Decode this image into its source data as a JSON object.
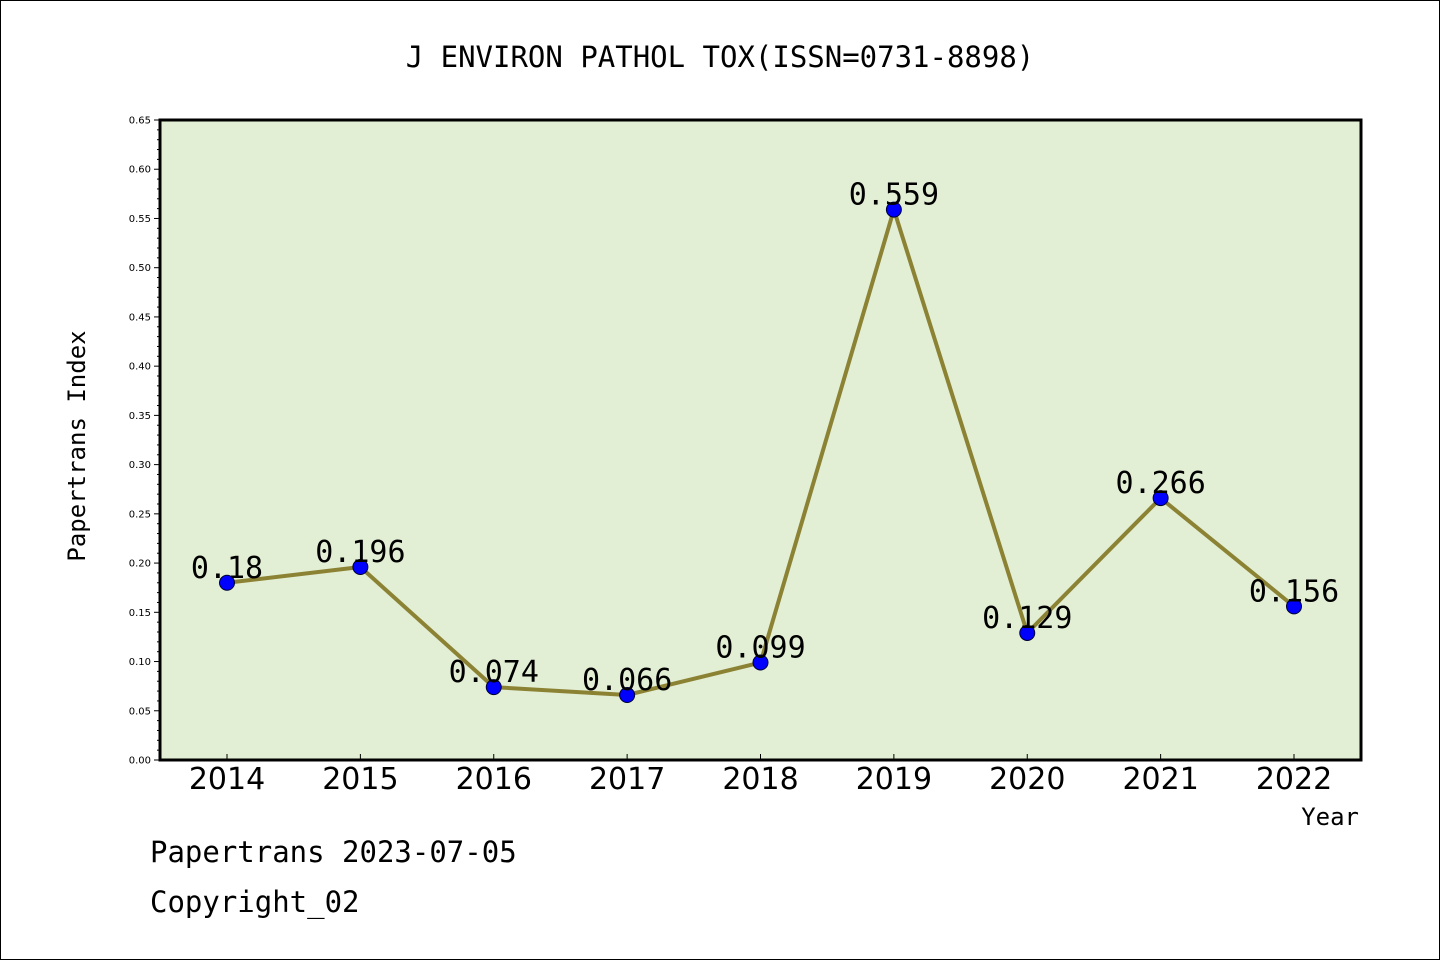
{
  "chart_data": {
    "type": "line",
    "title": "J ENVIRON PATHOL TOX(ISSN=0731-8898)",
    "xlabel": "Year",
    "ylabel": "Papertrans Index",
    "categories": [
      "2014",
      "2015",
      "2016",
      "2017",
      "2018",
      "2019",
      "2020",
      "2021",
      "2022"
    ],
    "values": [
      0.18,
      0.196,
      0.074,
      0.066,
      0.099,
      0.559,
      0.129,
      0.266,
      0.156
    ],
    "data_labels": [
      "0.18",
      "0.196",
      "0.074",
      "0.066",
      "0.099",
      "0.559",
      "0.129",
      "0.266",
      "0.156"
    ],
    "ylim": [
      0,
      0.65
    ],
    "yticks": [
      "0.00",
      "0.05",
      "0.10",
      "0.15",
      "0.20",
      "0.25",
      "0.30",
      "0.35",
      "0.40",
      "0.45",
      "0.50",
      "0.55",
      "0.60",
      "0.65"
    ],
    "grid": false,
    "colors": {
      "plot_background": "#e2efd4",
      "line": "#8c8234",
      "marker": "#0000ff"
    }
  },
  "footer": {
    "line1": "Papertrans 2023-07-05",
    "line2": "Copyright_02"
  }
}
